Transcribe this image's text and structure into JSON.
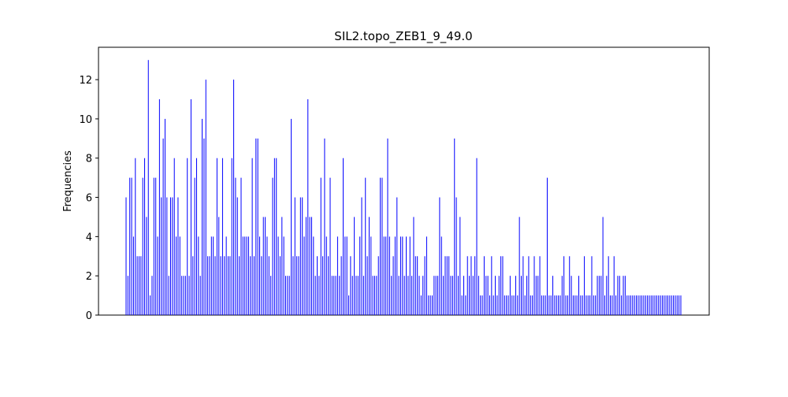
{
  "chart_data": {
    "type": "bar",
    "title": "SIL2.topo_ZEB1_9_49.0",
    "y_label": "Frequencies",
    "color": "#0000ff",
    "ylim": [
      0,
      13.65
    ],
    "yticks": [
      0,
      2,
      4,
      6,
      8,
      10,
      12
    ],
    "values": [
      6,
      2,
      7,
      7,
      4,
      8,
      3,
      3,
      3,
      7,
      8,
      5,
      13,
      1,
      2,
      7,
      7,
      4,
      11,
      6,
      9,
      10,
      6,
      2,
      6,
      6,
      8,
      4,
      6,
      4,
      2,
      2,
      2,
      8,
      2,
      11,
      3,
      7,
      8,
      4,
      2,
      10,
      9,
      12,
      3,
      3,
      4,
      4,
      3,
      8,
      5,
      3,
      8,
      3,
      4,
      3,
      3,
      8,
      12,
      7,
      6,
      3,
      7,
      4,
      4,
      4,
      4,
      3,
      8,
      3,
      9,
      9,
      4,
      3,
      5,
      5,
      4,
      3,
      2,
      7,
      8,
      8,
      4,
      3,
      5,
      4,
      2,
      2,
      2,
      10,
      3,
      6,
      3,
      3,
      6,
      6,
      4,
      5,
      11,
      5,
      5,
      4,
      2,
      3,
      2,
      7,
      3,
      9,
      4,
      3,
      7,
      2,
      2,
      2,
      4,
      2,
      3,
      8,
      4,
      4,
      1,
      3,
      2,
      5,
      2,
      2,
      4,
      6,
      2,
      7,
      3,
      5,
      4,
      2,
      2,
      2,
      3,
      7,
      7,
      4,
      4,
      9,
      4,
      2,
      3,
      4,
      6,
      2,
      4,
      4,
      2,
      4,
      2,
      4,
      2,
      5,
      3,
      3,
      2,
      1,
      2,
      3,
      4,
      1,
      1,
      1,
      2,
      2,
      2,
      6,
      4,
      2,
      3,
      3,
      3,
      2,
      2,
      9,
      6,
      2,
      5,
      1,
      2,
      1,
      3,
      2,
      3,
      2,
      3,
      8,
      2,
      1,
      1,
      3,
      2,
      2,
      1,
      3,
      1,
      2,
      1,
      2,
      3,
      3,
      1,
      1,
      1,
      2,
      1,
      1,
      2,
      1,
      5,
      2,
      3,
      1,
      2,
      3,
      1,
      1,
      3,
      2,
      2,
      3,
      1,
      1,
      1,
      7,
      1,
      1,
      2,
      1,
      1,
      1,
      1,
      2,
      3,
      1,
      1,
      3,
      2,
      1,
      1,
      1,
      2,
      1,
      1,
      3,
      1,
      1,
      1,
      3,
      1,
      1,
      2,
      2,
      2,
      5,
      1,
      2,
      3,
      1,
      1,
      3,
      1,
      2,
      2,
      1,
      2,
      2,
      1,
      1,
      1,
      1,
      1,
      1,
      1,
      1,
      1,
      1,
      1,
      1,
      1,
      1,
      1,
      1,
      1,
      1,
      1,
      1,
      1,
      1,
      1,
      1,
      1,
      1,
      1,
      1,
      1,
      1
    ]
  }
}
